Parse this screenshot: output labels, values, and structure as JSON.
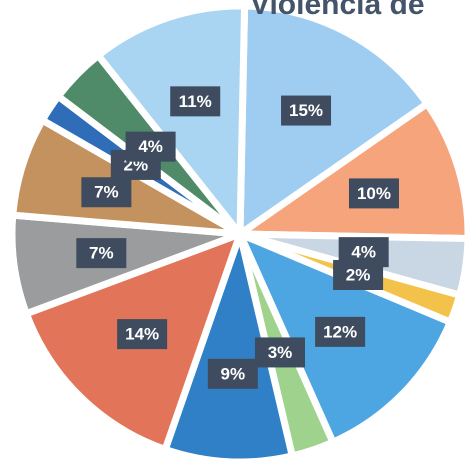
{
  "chart_data": {
    "type": "pie",
    "title": "Violencia de",
    "values": [
      15,
      10,
      4,
      2,
      12,
      3,
      9,
      14,
      7,
      7,
      2,
      4,
      11
    ],
    "value_labels": [
      "15%",
      "10%",
      "4%",
      "2%",
      "12%",
      "3%",
      "9%",
      "14%",
      "7%",
      "7%",
      "2%",
      "4%",
      "11%"
    ],
    "colors": [
      "#9fcdf2",
      "#f5a47c",
      "#c9d6e3",
      "#f3c24a",
      "#4da5e2",
      "#9fd28c",
      "#2f80c6",
      "#e27459",
      "#9b9c9e",
      "#c4925e",
      "#2f6db9",
      "#4f8a69",
      "#a9d5f2"
    ]
  }
}
